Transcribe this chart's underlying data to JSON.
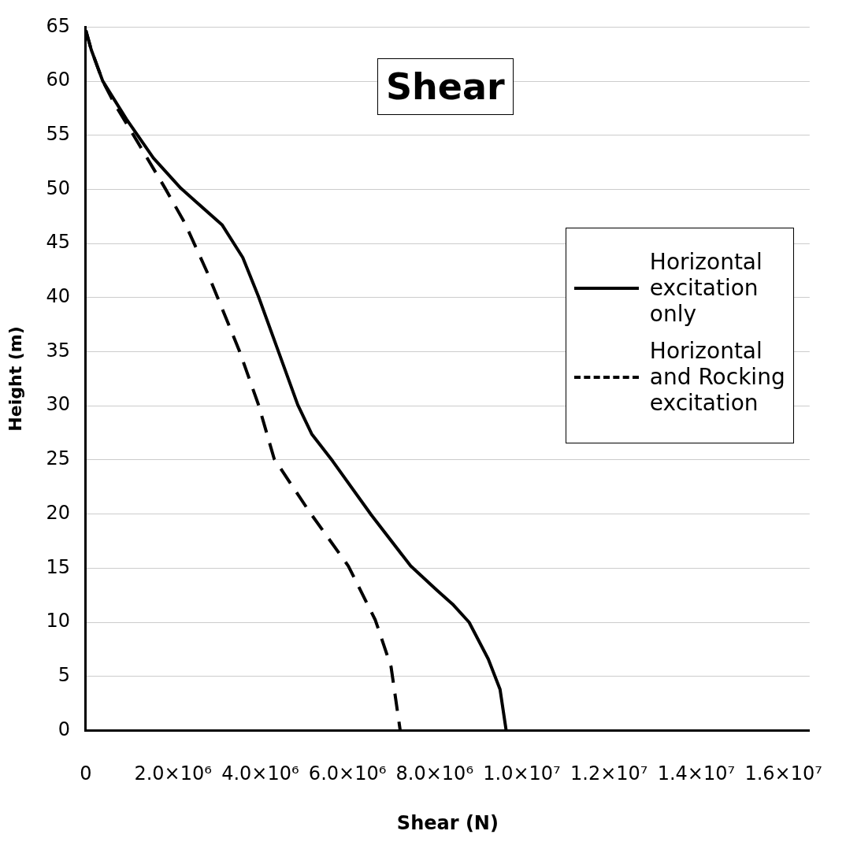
{
  "chart_data": {
    "type": "line",
    "title": "Shear",
    "xlabel": "Shear (N)",
    "ylabel": "Height (m)",
    "xlim": [
      0,
      16600000
    ],
    "xticks": [
      0,
      {
        "value": 2000000,
        "label": "2.0×10⁶"
      },
      {
        "value": 4000000,
        "label": "4.0×10⁶"
      },
      {
        "value": 6000000,
        "label": "6.0×10⁶"
      },
      {
        "value": 8000000,
        "label": "8.0×10⁶"
      },
      {
        "value": 10000000,
        "label": "1.0×10⁷"
      },
      {
        "value": 12000000,
        "label": "1.2×10⁷"
      },
      {
        "value": 14000000,
        "label": "1.4×10⁷"
      },
      {
        "value": 16000000,
        "label": "1.6×10⁷"
      }
    ],
    "ylim": [
      0,
      65
    ],
    "yticks": [
      0,
      5,
      10,
      15,
      20,
      25,
      30,
      35,
      40,
      45,
      50,
      55,
      60,
      65
    ],
    "grid": "y",
    "legend": "right",
    "marker": "none",
    "series": [
      {
        "name": "Horizontal excitation only",
        "color": "#000000",
        "line_style": "solid",
        "x": [
          0,
          125000,
          390000,
          930000,
          1550000,
          2180000,
          3130000,
          3600000,
          3960000,
          4410000,
          4860000,
          5180000,
          5660000,
          6550000,
          7450000,
          8040000,
          8430000,
          8790000,
          9230000,
          9500000,
          9640000
        ],
        "values": [
          64.7,
          62.9,
          60,
          56.5,
          52.9,
          50.1,
          46.7,
          43.7,
          40.1,
          35.1,
          30.1,
          27.4,
          24.9,
          19.9,
          15.2,
          13,
          11.6,
          10,
          6.6,
          3.8,
          0
        ]
      },
      {
        "name": "Horizontal and Rocking excitation",
        "color": "#000000",
        "line_style": "dashed",
        "x": [
          0,
          125000,
          390000,
          660000,
          1200000,
          1820000,
          2270000,
          2800000,
          3520000,
          3960000,
          4320000,
          5130000,
          6020000,
          6640000,
          7000000,
          7210000
        ],
        "values": [
          64.7,
          62.9,
          60,
          57.9,
          54.3,
          50.1,
          46.9,
          42.2,
          35.1,
          30.1,
          25.1,
          20.2,
          15.2,
          10.2,
          5.9,
          0
        ]
      }
    ]
  }
}
